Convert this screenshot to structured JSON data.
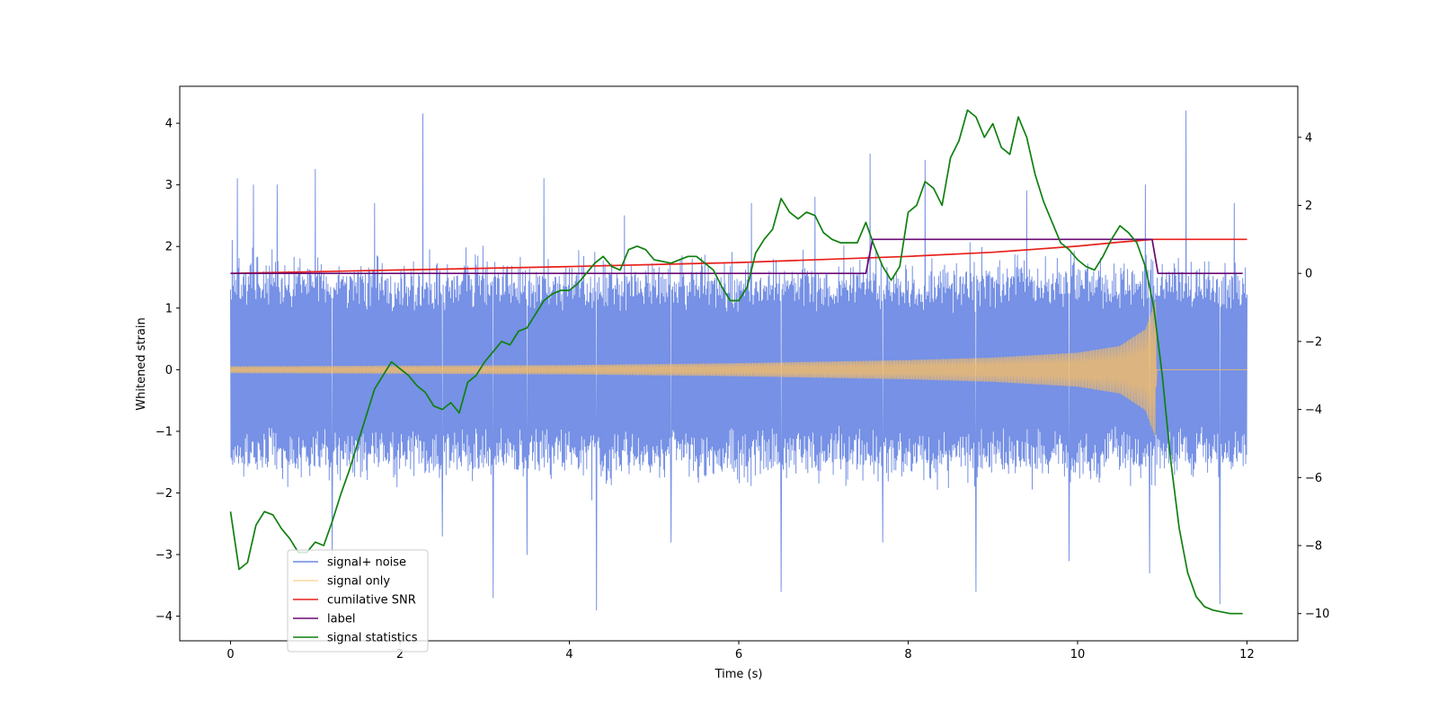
{
  "chart_data": {
    "type": "line",
    "xlabel": "Time (s)",
    "ylabel_left": "Whitened strain",
    "ylabel_right": "",
    "xlim": [
      -0.6,
      12.6
    ],
    "ylim_left": [
      -4.4,
      4.6
    ],
    "ylim_right": [
      -10.8,
      5.5
    ],
    "x_ticks": [
      0,
      2,
      4,
      6,
      8,
      10,
      12
    ],
    "y_ticks_left": [
      -4,
      -3,
      -2,
      -1,
      0,
      1,
      2,
      3,
      4
    ],
    "y_ticks_right": [
      -10,
      -8,
      -6,
      -4,
      -2,
      0,
      2,
      4
    ],
    "grid": false,
    "legend_position": "lower-left",
    "series": [
      {
        "name": "signal+ noise",
        "axis": "left",
        "color": "#6a88e3",
        "style": "noise",
        "x_range": [
          0,
          12
        ],
        "envelope_peak": 1.5,
        "extreme_values": [
          {
            "x": 0.02,
            "y": 2.1
          },
          {
            "x": 0.08,
            "y": 3.1
          },
          {
            "x": 0.27,
            "y": 3.0
          },
          {
            "x": 0.55,
            "y": 3.0
          },
          {
            "x": 1.0,
            "y": 3.25
          },
          {
            "x": 1.2,
            "y": -3.0
          },
          {
            "x": 1.7,
            "y": 2.7
          },
          {
            "x": 2.27,
            "y": 4.15
          },
          {
            "x": 2.5,
            "y": -2.7
          },
          {
            "x": 3.1,
            "y": -3.7
          },
          {
            "x": 3.5,
            "y": -3.0
          },
          {
            "x": 3.7,
            "y": 3.1
          },
          {
            "x": 4.32,
            "y": -3.9
          },
          {
            "x": 4.65,
            "y": 2.5
          },
          {
            "x": 5.2,
            "y": -2.8
          },
          {
            "x": 6.15,
            "y": 2.7
          },
          {
            "x": 6.5,
            "y": -3.6
          },
          {
            "x": 6.9,
            "y": 2.8
          },
          {
            "x": 7.55,
            "y": 3.5
          },
          {
            "x": 7.7,
            "y": -2.8
          },
          {
            "x": 8.2,
            "y": 3.4
          },
          {
            "x": 8.8,
            "y": -3.6
          },
          {
            "x": 9.4,
            "y": 2.9
          },
          {
            "x": 9.9,
            "y": -3.1
          },
          {
            "x": 10.8,
            "y": 3.0
          },
          {
            "x": 10.85,
            "y": -3.3
          },
          {
            "x": 11.28,
            "y": 4.2
          },
          {
            "x": 11.68,
            "y": -3.8
          },
          {
            "x": 11.85,
            "y": 2.7
          }
        ]
      },
      {
        "name": "signal only",
        "axis": "left",
        "color": "#ffc05c",
        "style": "chirp",
        "x_range": [
          0,
          12
        ],
        "amplitude_points": [
          [
            0,
            0.05
          ],
          [
            2,
            0.06
          ],
          [
            4,
            0.07
          ],
          [
            6,
            0.1
          ],
          [
            8,
            0.15
          ],
          [
            9,
            0.19
          ],
          [
            10,
            0.27
          ],
          [
            10.5,
            0.38
          ],
          [
            10.8,
            0.65
          ],
          [
            10.92,
            1.1
          ],
          [
            10.93,
            0
          ],
          [
            12,
            0
          ]
        ]
      },
      {
        "name": "cumilative SNR",
        "axis": "right",
        "color": "#e8201c",
        "style": "line",
        "points": [
          [
            0,
            0
          ],
          [
            2,
            0.1
          ],
          [
            4,
            0.2
          ],
          [
            6,
            0.32
          ],
          [
            8,
            0.5
          ],
          [
            9,
            0.62
          ],
          [
            10,
            0.8
          ],
          [
            10.5,
            0.92
          ],
          [
            10.9,
            1.0
          ],
          [
            12,
            1.0
          ]
        ]
      },
      {
        "name": "label",
        "axis": "right",
        "color": "#6a0a74",
        "style": "line",
        "points": [
          [
            0,
            0
          ],
          [
            7.5,
            0
          ],
          [
            7.58,
            1.0
          ],
          [
            10.88,
            1.0
          ],
          [
            10.95,
            0
          ],
          [
            11.95,
            0
          ]
        ]
      },
      {
        "name": "signal statistics",
        "axis": "right",
        "color": "#108010",
        "style": "line",
        "points": [
          [
            0,
            -7.0
          ],
          [
            0.1,
            -8.7
          ],
          [
            0.2,
            -8.5
          ],
          [
            0.3,
            -7.4
          ],
          [
            0.4,
            -7.0
          ],
          [
            0.5,
            -7.1
          ],
          [
            0.6,
            -7.5
          ],
          [
            0.7,
            -7.8
          ],
          [
            0.8,
            -8.2
          ],
          [
            0.9,
            -8.2
          ],
          [
            1.0,
            -7.9
          ],
          [
            1.1,
            -8.0
          ],
          [
            1.2,
            -7.3
          ],
          [
            1.3,
            -6.5
          ],
          [
            1.4,
            -5.8
          ],
          [
            1.5,
            -5.0
          ],
          [
            1.6,
            -4.2
          ],
          [
            1.7,
            -3.4
          ],
          [
            1.8,
            -3.0
          ],
          [
            1.9,
            -2.6
          ],
          [
            2.0,
            -2.8
          ],
          [
            2.1,
            -3.0
          ],
          [
            2.2,
            -3.3
          ],
          [
            2.3,
            -3.5
          ],
          [
            2.4,
            -3.9
          ],
          [
            2.5,
            -4.0
          ],
          [
            2.6,
            -3.8
          ],
          [
            2.7,
            -4.1
          ],
          [
            2.8,
            -3.2
          ],
          [
            2.9,
            -3.0
          ],
          [
            3.0,
            -2.6
          ],
          [
            3.1,
            -2.3
          ],
          [
            3.2,
            -2.0
          ],
          [
            3.3,
            -2.1
          ],
          [
            3.4,
            -1.7
          ],
          [
            3.5,
            -1.6
          ],
          [
            3.6,
            -1.2
          ],
          [
            3.7,
            -0.8
          ],
          [
            3.8,
            -0.6
          ],
          [
            3.9,
            -0.5
          ],
          [
            4.0,
            -0.5
          ],
          [
            4.1,
            -0.3
          ],
          [
            4.2,
            0.0
          ],
          [
            4.3,
            0.3
          ],
          [
            4.4,
            0.5
          ],
          [
            4.5,
            0.2
          ],
          [
            4.6,
            0.1
          ],
          [
            4.7,
            0.7
          ],
          [
            4.8,
            0.8
          ],
          [
            4.9,
            0.7
          ],
          [
            5.0,
            0.4
          ],
          [
            5.2,
            0.3
          ],
          [
            5.4,
            0.5
          ],
          [
            5.5,
            0.5
          ],
          [
            5.6,
            0.3
          ],
          [
            5.7,
            0.1
          ],
          [
            5.8,
            -0.4
          ],
          [
            5.9,
            -0.8
          ],
          [
            6.0,
            -0.8
          ],
          [
            6.1,
            -0.4
          ],
          [
            6.2,
            0.6
          ],
          [
            6.3,
            1.0
          ],
          [
            6.4,
            1.3
          ],
          [
            6.5,
            2.2
          ],
          [
            6.6,
            1.8
          ],
          [
            6.7,
            1.6
          ],
          [
            6.8,
            1.8
          ],
          [
            6.9,
            1.7
          ],
          [
            7.0,
            1.2
          ],
          [
            7.1,
            1.0
          ],
          [
            7.2,
            0.9
          ],
          [
            7.3,
            0.9
          ],
          [
            7.4,
            0.9
          ],
          [
            7.5,
            1.5
          ],
          [
            7.6,
            0.8
          ],
          [
            7.7,
            0.2
          ],
          [
            7.8,
            -0.2
          ],
          [
            7.9,
            0.2
          ],
          [
            8.0,
            1.8
          ],
          [
            8.1,
            2.0
          ],
          [
            8.2,
            2.7
          ],
          [
            8.3,
            2.5
          ],
          [
            8.4,
            2.0
          ],
          [
            8.5,
            3.4
          ],
          [
            8.6,
            3.9
          ],
          [
            8.7,
            4.8
          ],
          [
            8.8,
            4.6
          ],
          [
            8.9,
            4.0
          ],
          [
            9.0,
            4.4
          ],
          [
            9.1,
            3.7
          ],
          [
            9.2,
            3.5
          ],
          [
            9.3,
            4.6
          ],
          [
            9.4,
            4.0
          ],
          [
            9.5,
            2.9
          ],
          [
            9.6,
            2.1
          ],
          [
            9.7,
            1.5
          ],
          [
            9.8,
            0.9
          ],
          [
            9.9,
            0.7
          ],
          [
            10.0,
            0.4
          ],
          [
            10.1,
            0.2
          ],
          [
            10.2,
            0.1
          ],
          [
            10.3,
            0.5
          ],
          [
            10.4,
            1.0
          ],
          [
            10.5,
            1.4
          ],
          [
            10.6,
            1.2
          ],
          [
            10.7,
            0.9
          ],
          [
            10.8,
            0.2
          ],
          [
            10.9,
            -1.0
          ],
          [
            11.0,
            -3.0
          ],
          [
            11.1,
            -5.5
          ],
          [
            11.2,
            -7.5
          ],
          [
            11.3,
            -8.8
          ],
          [
            11.4,
            -9.5
          ],
          [
            11.5,
            -9.8
          ],
          [
            11.6,
            -9.9
          ],
          [
            11.7,
            -9.95
          ],
          [
            11.8,
            -10.0
          ],
          [
            11.95,
            -10.0
          ]
        ]
      }
    ]
  }
}
